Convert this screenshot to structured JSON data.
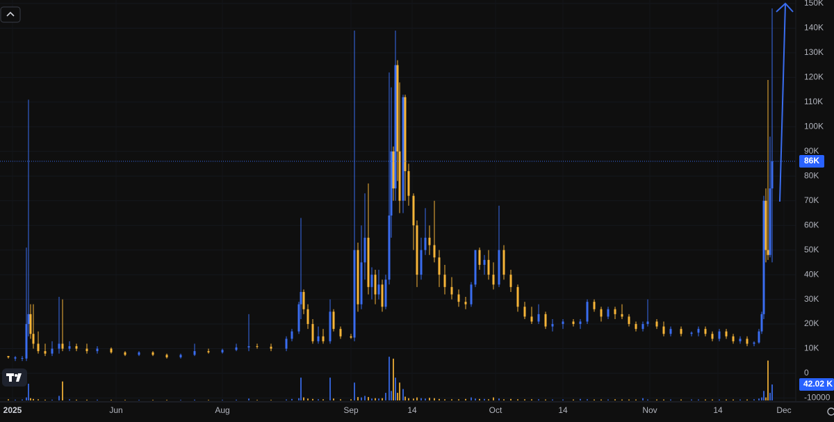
{
  "chart_data": {
    "type": "candlestick",
    "up_color": "#3a6df0",
    "down_color": "#f7b538",
    "grid": true,
    "xlim": [
      0,
      1145
    ],
    "xticks": [
      {
        "value": 18,
        "label": "2025"
      },
      {
        "value": 167,
        "label": "Jun"
      },
      {
        "value": 320,
        "label": "Aug"
      },
      {
        "value": 505,
        "label": "Sep"
      },
      {
        "value": 593,
        "label": "14"
      },
      {
        "value": 713,
        "label": "Oct"
      },
      {
        "value": 810,
        "label": "14"
      },
      {
        "value": 935,
        "label": "Nov"
      },
      {
        "value": 1033,
        "label": "14"
      },
      {
        "value": 1128,
        "label": "Dec"
      }
    ],
    "ylim": [
      -11000,
      150000
    ],
    "yticks": [
      {
        "value": 150000,
        "label": "150K"
      },
      {
        "value": 140000,
        "label": "140K"
      },
      {
        "value": 130000,
        "label": "130K"
      },
      {
        "value": 120000,
        "label": "120K"
      },
      {
        "value": 110000,
        "label": "110K"
      },
      {
        "value": 100000,
        "label": "100K"
      },
      {
        "value": 90000,
        "label": "90K"
      },
      {
        "value": 80000,
        "label": "80K"
      },
      {
        "value": 70000,
        "label": "70K"
      },
      {
        "value": 60000,
        "label": "60K"
      },
      {
        "value": 50000,
        "label": "50K"
      },
      {
        "value": 40000,
        "label": "40K"
      },
      {
        "value": 30000,
        "label": "30K"
      },
      {
        "value": 20000,
        "label": "20K"
      },
      {
        "value": 10000,
        "label": "10K"
      },
      0,
      -10000
    ],
    "y2lim": [
      0,
      1045000
    ],
    "x": [
      12,
      22,
      32,
      38,
      41,
      44,
      48,
      55,
      65,
      75,
      85,
      90,
      100,
      110,
      125,
      140,
      160,
      180,
      200,
      220,
      240,
      260,
      280,
      300,
      320,
      340,
      358,
      370,
      390,
      412,
      420,
      430,
      433,
      437,
      443,
      450,
      458,
      465,
      475,
      480,
      490,
      505,
      510,
      515,
      520,
      525,
      530,
      535,
      540,
      545,
      550,
      555,
      560,
      563,
      566,
      569,
      572,
      575,
      580,
      583,
      588,
      595,
      600,
      606,
      612,
      618,
      625,
      632,
      640,
      650,
      660,
      670,
      678,
      684,
      690,
      697,
      703,
      710,
      718,
      725,
      735,
      745,
      755,
      765,
      775,
      785,
      795,
      810,
      825,
      835,
      845,
      855,
      865,
      875,
      885,
      895,
      905,
      915,
      925,
      932,
      945,
      955,
      965,
      980,
      995,
      1005,
      1015,
      1025,
      1035,
      1045,
      1055,
      1065,
      1075,
      1085,
      1092,
      1096,
      1099,
      1102,
      1105,
      1108,
      1111
    ],
    "open": [
      7000,
      6000,
      6000,
      6000,
      20000,
      24000,
      16000,
      12000,
      9000,
      8000,
      10000,
      12000,
      10000,
      11000,
      10000,
      9000,
      10000,
      8500,
      7500,
      8500,
      7500,
      6500,
      7500,
      9000,
      8500,
      9500,
      10500,
      11000,
      10800,
      10000,
      14000,
      17000,
      28000,
      33000,
      26000,
      20000,
      13000,
      15000,
      13000,
      25000,
      18000,
      15000,
      14500,
      50000,
      28000,
      45000,
      55000,
      35000,
      40000,
      32000,
      36000,
      27000,
      38000,
      64000,
      90000,
      75000,
      125000,
      90000,
      70000,
      112000,
      82000,
      72000,
      60000,
      40000,
      50000,
      55000,
      52000,
      47000,
      40000,
      35000,
      32000,
      29000,
      28000,
      36000,
      50000,
      44000,
      46000,
      40000,
      36000,
      50000,
      40000,
      35000,
      27000,
      23000,
      21000,
      24000,
      19000,
      20000,
      21000,
      20000,
      21000,
      29000,
      26000,
      23000,
      26000,
      24000,
      23000,
      20000,
      18000,
      20000,
      21000,
      19000,
      16000,
      18000,
      16000,
      16500,
      18000,
      16000,
      14000,
      17000,
      15000,
      13000,
      14000,
      12000,
      12500,
      17000,
      24000,
      70000,
      50000,
      48000,
      75000
    ],
    "high": [
      7000,
      7000,
      7000,
      51000,
      111000,
      28000,
      28000,
      17000,
      12000,
      13000,
      31000,
      30000,
      13000,
      12000,
      12000,
      11000,
      10500,
      9000,
      9000,
      9000,
      8000,
      8000,
      12000,
      10000,
      10000,
      12000,
      24000,
      12000,
      12000,
      15000,
      18000,
      29000,
      63000,
      34000,
      28000,
      22000,
      19000,
      18000,
      30000,
      26000,
      19000,
      16000,
      139000,
      53000,
      60000,
      73000,
      77000,
      43000,
      42000,
      42000,
      38000,
      40000,
      122000,
      116000,
      92000,
      139000,
      127000,
      118000,
      113000,
      113000,
      85000,
      73000,
      62000,
      55000,
      67000,
      60000,
      70000,
      50000,
      44000,
      39000,
      34000,
      31000,
      37000,
      50000,
      51000,
      48000,
      50000,
      45000,
      68000,
      52000,
      42000,
      36000,
      29000,
      27000,
      28000,
      25000,
      22000,
      22000,
      22000,
      22000,
      30000,
      30000,
      27000,
      27000,
      27000,
      28000,
      24000,
      21000,
      21000,
      30000,
      22000,
      21000,
      19000,
      19000,
      17000,
      19000,
      19000,
      17000,
      18000,
      18000,
      16000,
      15000,
      15000,
      13000,
      18000,
      25000,
      72000,
      75000,
      119000,
      96000,
      148000
    ],
    "low": [
      6000,
      5000,
      5000,
      5000,
      15000,
      14000,
      10000,
      8000,
      7000,
      7000,
      8000,
      9000,
      9000,
      9000,
      8000,
      8000,
      8000,
      7000,
      7000,
      7000,
      6000,
      6000,
      7000,
      8000,
      8000,
      9000,
      9000,
      10000,
      9000,
      9000,
      13000,
      16000,
      22000,
      24000,
      18000,
      12000,
      12000,
      12000,
      12000,
      17000,
      14000,
      14000,
      13000,
      25000,
      26000,
      38000,
      32000,
      30000,
      28000,
      30000,
      25000,
      26000,
      36000,
      55000,
      70000,
      70000,
      78000,
      65000,
      65000,
      70000,
      68000,
      50000,
      35000,
      38000,
      48000,
      48000,
      45000,
      35000,
      32000,
      30000,
      27000,
      26000,
      27000,
      35000,
      42000,
      40000,
      38000,
      34000,
      35000,
      38000,
      33000,
      25000,
      22000,
      20000,
      20000,
      18000,
      17000,
      18000,
      19000,
      18000,
      20000,
      25000,
      21000,
      22000,
      22000,
      22000,
      19000,
      17000,
      17000,
      19000,
      18000,
      15000,
      15000,
      15000,
      15000,
      15000,
      15000,
      13000,
      13000,
      14000,
      12000,
      12000,
      11000,
      11000,
      12000,
      16000,
      22000,
      45000,
      46000,
      47000,
      45000
    ],
    "close": [
      6500,
      6500,
      6200,
      20000,
      24000,
      16000,
      12000,
      9000,
      8000,
      10000,
      12000,
      10000,
      11000,
      10000,
      9000,
      10000,
      8500,
      7500,
      8500,
      7500,
      6500,
      7500,
      9000,
      8500,
      9500,
      10500,
      11000,
      10800,
      10000,
      14000,
      17000,
      28000,
      33000,
      26000,
      20000,
      13000,
      15000,
      13000,
      25000,
      18000,
      15000,
      14500,
      50000,
      28000,
      45000,
      55000,
      35000,
      40000,
      32000,
      36000,
      27000,
      38000,
      64000,
      90000,
      75000,
      125000,
      90000,
      70000,
      112000,
      82000,
      72000,
      60000,
      40000,
      50000,
      55000,
      52000,
      47000,
      40000,
      35000,
      32000,
      29000,
      28000,
      36000,
      50000,
      44000,
      46000,
      40000,
      36000,
      50000,
      40000,
      35000,
      27000,
      23000,
      21000,
      24000,
      19000,
      20000,
      21000,
      20000,
      21000,
      29000,
      26000,
      23000,
      26000,
      24000,
      23000,
      20000,
      18000,
      20000,
      21000,
      19000,
      16000,
      18000,
      16000,
      16500,
      18000,
      16000,
      14000,
      17000,
      15000,
      13000,
      14000,
      12000,
      12500,
      17000,
      24000,
      70000,
      50000,
      48000,
      75000,
      86000
    ],
    "volume": {
      "axis": "y2",
      "values": [
        3000,
        2000,
        2500,
        8000,
        44000,
        6000,
        4000,
        3000,
        2000,
        2000,
        12000,
        50000,
        3000,
        2000,
        2000,
        2000,
        1500,
        1500,
        1500,
        1500,
        1500,
        1500,
        2000,
        1500,
        1500,
        2000,
        5000,
        1500,
        1500,
        2500,
        4000,
        6000,
        60000,
        8000,
        5000,
        4000,
        3000,
        3000,
        60000,
        5000,
        3000,
        3000,
        47000,
        9000,
        8000,
        12000,
        9000,
        5000,
        6000,
        5000,
        6000,
        20000,
        115000,
        25000,
        110000,
        60000,
        20000,
        47000,
        30000,
        10000,
        6000,
        5000,
        8000,
        6000,
        5000,
        7000,
        6000,
        4000,
        3000,
        3000,
        3000,
        4000,
        8000,
        5000,
        4000,
        4000,
        3000,
        8000,
        5000,
        3000,
        4000,
        3000,
        3000,
        3000,
        3000,
        2500,
        2500,
        2500,
        2500,
        4000,
        3000,
        2500,
        2500,
        2500,
        3000,
        2500,
        2500,
        2500,
        6000,
        2500,
        2500,
        2500,
        2500,
        2500,
        2500,
        2500,
        2500,
        2500,
        2500,
        2500,
        2500,
        2500,
        2500,
        3000,
        5000,
        8000,
        25000,
        8000,
        105000,
        20000,
        42020
      ]
    },
    "current_price": {
      "value": 86000,
      "label": "86K"
    },
    "current_volume": {
      "value": 42020,
      "label": "42.02 K"
    }
  }
}
